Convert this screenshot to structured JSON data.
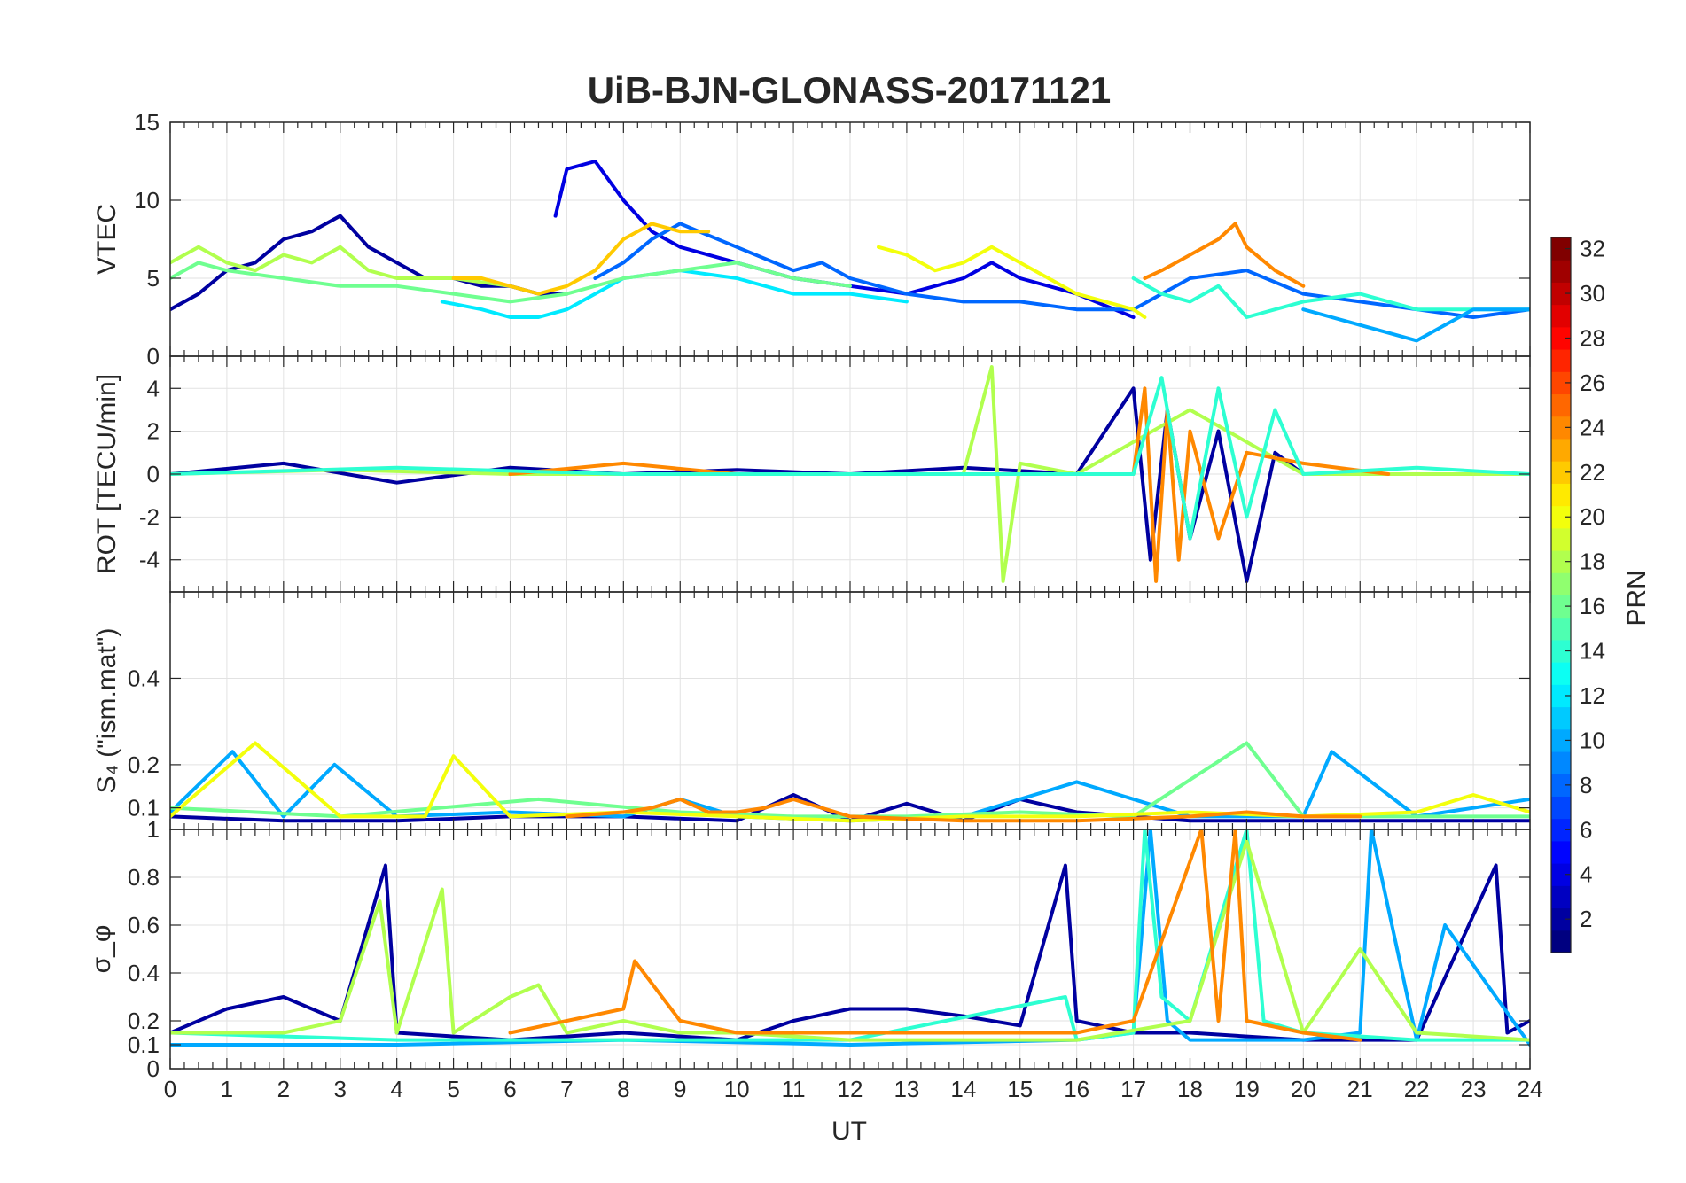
{
  "title": "UiB-BJN-GLONASS-20171121",
  "chart_data": [
    {
      "type": "line",
      "ylabel": "VTEC",
      "ylim": [
        0,
        15
      ],
      "yticks": [
        0,
        5,
        10,
        15
      ],
      "xlim": [
        0,
        24
      ],
      "grid": true,
      "series": [
        {
          "c": 2,
          "x": [
            0,
            0.5,
            1,
            1.5,
            2,
            2.5,
            3,
            3.5,
            4,
            4.5,
            5,
            5.5,
            6,
            6.5,
            7
          ],
          "values": [
            3,
            4,
            5.5,
            6,
            7.5,
            8,
            9,
            7,
            6,
            5,
            5,
            4.5,
            4.5,
            4,
            4
          ]
        },
        {
          "c": 4,
          "x": [
            6.8,
            7,
            7.5,
            8,
            8.5,
            9,
            10,
            11,
            12,
            13,
            14,
            14.5,
            15,
            16,
            17
          ],
          "values": [
            9,
            12,
            12.5,
            10,
            8,
            7,
            6,
            5,
            4.5,
            4,
            5,
            6,
            5,
            4,
            2.5
          ]
        },
        {
          "c": 8,
          "x": [
            7.5,
            8,
            8.5,
            9,
            10,
            11,
            11.5,
            12,
            13,
            14,
            15,
            16,
            17,
            18,
            19,
            20,
            21,
            22,
            23,
            24
          ],
          "values": [
            5,
            6,
            7.5,
            8.5,
            7,
            5.5,
            6,
            5,
            4,
            3.5,
            3.5,
            3,
            3,
            5,
            5.5,
            4,
            3.5,
            3,
            2.5,
            3
          ]
        },
        {
          "c": 12,
          "x": [
            4.8,
            5.5,
            6,
            6.5,
            7,
            7.5,
            8,
            9,
            10,
            11,
            12,
            13
          ],
          "values": [
            3.5,
            3,
            2.5,
            2.5,
            3,
            4,
            5,
            5.5,
            5,
            4,
            4,
            3.5
          ]
        },
        {
          "c": 16,
          "x": [
            0,
            0.5,
            1,
            2,
            3,
            4,
            5,
            6,
            7,
            8,
            9,
            10,
            11,
            12
          ],
          "values": [
            5,
            6,
            5.5,
            5,
            4.5,
            4.5,
            4,
            3.5,
            4,
            5,
            5.5,
            6,
            5,
            4.5
          ]
        },
        {
          "c": 18,
          "x": [
            0,
            0.5,
            1,
            1.5,
            2,
            2.5,
            3,
            3.5,
            4,
            5,
            6
          ],
          "values": [
            6,
            7,
            6,
            5.5,
            6.5,
            6,
            7,
            5.5,
            5,
            5,
            4.5
          ]
        },
        {
          "c": 20,
          "x": [
            12.5,
            13,
            13.5,
            14,
            14.5,
            15,
            16,
            17,
            17.2
          ],
          "values": [
            7,
            6.5,
            5.5,
            6,
            7,
            6,
            4,
            3,
            2.5
          ]
        },
        {
          "c": 22,
          "x": [
            5,
            5.5,
            6,
            6.5,
            7,
            7.5,
            8,
            8.5,
            9,
            9.5
          ],
          "values": [
            5,
            5,
            4.5,
            4,
            4.5,
            5.5,
            7.5,
            8.5,
            8,
            8
          ]
        },
        {
          "c": 24,
          "x": [
            17.2,
            17.5,
            18,
            18.5,
            18.8,
            19,
            19.5,
            20
          ],
          "values": [
            5,
            5.5,
            6.5,
            7.5,
            8.5,
            7,
            5.5,
            4.5
          ]
        },
        {
          "c": 14,
          "x": [
            17,
            17.5,
            18,
            18.5,
            19,
            19.5,
            20,
            21,
            22,
            23,
            24
          ],
          "values": [
            5,
            4,
            3.5,
            4.5,
            2.5,
            3,
            3.5,
            4,
            3,
            3,
            3
          ]
        },
        {
          "c": 10,
          "x": [
            20,
            20.5,
            21,
            21.5,
            22,
            22.5,
            23,
            24
          ],
          "values": [
            3,
            2.5,
            2,
            1.5,
            1,
            2,
            3,
            3
          ]
        }
      ]
    },
    {
      "type": "line",
      "ylabel": "ROT [TECU/min]",
      "ylim": [
        -5.5,
        5.5
      ],
      "yticks": [
        -4,
        -2,
        0,
        2,
        4
      ],
      "xlim": [
        0,
        24
      ],
      "grid": true,
      "series": [
        {
          "c": 2,
          "x": [
            0,
            2,
            4,
            6,
            8,
            10,
            12,
            14,
            16,
            17,
            17.3,
            17.6,
            18,
            18.5,
            19,
            19.5,
            20,
            22,
            24
          ],
          "values": [
            0,
            0.5,
            -0.4,
            0.3,
            0,
            0.2,
            0,
            0.3,
            0,
            4,
            -4,
            3,
            -3,
            2,
            -5,
            1,
            0,
            0,
            0
          ]
        },
        {
          "c": 18,
          "x": [
            0,
            3,
            6,
            9,
            12,
            14,
            14.5,
            14.7,
            15,
            16,
            18,
            20,
            22,
            24
          ],
          "values": [
            0,
            0.2,
            0,
            0,
            0,
            0,
            5,
            -5,
            0.5,
            0,
            3,
            0,
            0,
            0
          ]
        },
        {
          "c": 24,
          "x": [
            6,
            8,
            10,
            12,
            16,
            17,
            17.2,
            17.4,
            17.6,
            17.8,
            18,
            18.5,
            19,
            20,
            21.5
          ],
          "values": [
            0,
            0.5,
            0,
            0,
            0,
            0,
            4,
            -5,
            3,
            -4,
            2,
            -3,
            1,
            0.5,
            0
          ]
        },
        {
          "c": 14,
          "x": [
            0,
            4,
            8,
            12,
            16,
            17,
            17.5,
            18,
            18.5,
            19,
            19.5,
            20,
            22,
            24
          ],
          "values": [
            0,
            0.3,
            0,
            0,
            0,
            0,
            4.5,
            -3,
            4,
            -2,
            3,
            0,
            0.3,
            0
          ]
        }
      ]
    },
    {
      "type": "line",
      "ylabel": "S₄ (\"ism.mat\")",
      "ylim": [
        0.05,
        0.6
      ],
      "yticks": [
        0.1,
        0.2,
        0.4
      ],
      "xlim": [
        0,
        24
      ],
      "grid": true,
      "series": [
        {
          "c": 2,
          "x": [
            0,
            2,
            4,
            6,
            8,
            10,
            11,
            12,
            13,
            14,
            15,
            16,
            18,
            20,
            22,
            24
          ],
          "values": [
            0.08,
            0.07,
            0.07,
            0.08,
            0.08,
            0.07,
            0.13,
            0.07,
            0.11,
            0.07,
            0.12,
            0.09,
            0.07,
            0.07,
            0.07,
            0.07
          ]
        },
        {
          "c": 10,
          "x": [
            0,
            1.1,
            2,
            2.9,
            4,
            6,
            8,
            9,
            10,
            12,
            14,
            16,
            18,
            20,
            20.5,
            22,
            24
          ],
          "values": [
            0.09,
            0.23,
            0.08,
            0.2,
            0.08,
            0.09,
            0.08,
            0.12,
            0.08,
            0.07,
            0.08,
            0.16,
            0.08,
            0.08,
            0.23,
            0.08,
            0.12
          ]
        },
        {
          "c": 16,
          "x": [
            0,
            3,
            6.5,
            9,
            11,
            13,
            15,
            17,
            19,
            20,
            22,
            24
          ],
          "values": [
            0.1,
            0.08,
            0.12,
            0.09,
            0.08,
            0.08,
            0.09,
            0.08,
            0.25,
            0.08,
            0.08,
            0.08
          ]
        },
        {
          "c": 20,
          "x": [
            0,
            1.5,
            3,
            4.5,
            5,
            6,
            8,
            10,
            12,
            14,
            16,
            18,
            20,
            22,
            23,
            24
          ],
          "values": [
            0.08,
            0.25,
            0.08,
            0.08,
            0.22,
            0.08,
            0.09,
            0.08,
            0.07,
            0.08,
            0.08,
            0.09,
            0.08,
            0.09,
            0.13,
            0.09
          ]
        },
        {
          "c": 24,
          "x": [
            7,
            8,
            8.5,
            9,
            9.5,
            10,
            10.5,
            11,
            12,
            14,
            16,
            18,
            19,
            20,
            21
          ],
          "values": [
            0.08,
            0.09,
            0.1,
            0.12,
            0.09,
            0.09,
            0.1,
            0.12,
            0.08,
            0.07,
            0.07,
            0.08,
            0.09,
            0.08,
            0.08
          ]
        }
      ]
    },
    {
      "type": "line",
      "ylabel": "σ_φ",
      "ylim": [
        0,
        1
      ],
      "yticks": [
        0,
        0.1,
        0.2,
        0.4,
        0.6,
        0.8,
        1
      ],
      "xlim": [
        0,
        24
      ],
      "grid": true,
      "series": [
        {
          "c": 2,
          "x": [
            0,
            1,
            2,
            3,
            3.8,
            4,
            6,
            8,
            10,
            11,
            12,
            13,
            14,
            15,
            15.8,
            16,
            17,
            18,
            20,
            22,
            23.4,
            23.6,
            24
          ],
          "values": [
            0.15,
            0.25,
            0.3,
            0.2,
            0.85,
            0.15,
            0.12,
            0.15,
            0.12,
            0.2,
            0.25,
            0.25,
            0.22,
            0.18,
            0.85,
            0.2,
            0.15,
            0.15,
            0.12,
            0.12,
            0.85,
            0.15,
            0.2
          ]
        },
        {
          "c": 10,
          "x": [
            0,
            4,
            8,
            12,
            16,
            17,
            17.3,
            17.6,
            18,
            20,
            21,
            21.2,
            22,
            22.5,
            24
          ],
          "values": [
            0.1,
            0.1,
            0.12,
            0.1,
            0.12,
            0.15,
            1,
            0.2,
            0.12,
            0.12,
            0.15,
            1,
            0.12,
            0.6,
            0.1
          ]
        },
        {
          "c": 14,
          "x": [
            0,
            4,
            8,
            12,
            15.8,
            16,
            17,
            17.2,
            17.5,
            18,
            19,
            19.3,
            20,
            22,
            24
          ],
          "values": [
            0.15,
            0.12,
            0.12,
            0.12,
            0.3,
            0.12,
            0.15,
            1,
            0.3,
            0.2,
            1,
            0.2,
            0.15,
            0.12,
            0.12
          ]
        },
        {
          "c": 18,
          "x": [
            0,
            2,
            3,
            3.7,
            4,
            4.8,
            5,
            6,
            6.5,
            7,
            8,
            9,
            10,
            12,
            14,
            16,
            18,
            19,
            20,
            21,
            22,
            24
          ],
          "values": [
            0.15,
            0.15,
            0.2,
            0.7,
            0.15,
            0.75,
            0.15,
            0.3,
            0.35,
            0.15,
            0.2,
            0.15,
            0.15,
            0.12,
            0.12,
            0.12,
            0.2,
            0.95,
            0.15,
            0.5,
            0.15,
            0.12
          ]
        },
        {
          "c": 24,
          "x": [
            6,
            8,
            8.2,
            9,
            10,
            11,
            16,
            17,
            18.2,
            18.5,
            18.8,
            19,
            20,
            21
          ],
          "values": [
            0.15,
            0.25,
            0.45,
            0.2,
            0.15,
            0.15,
            0.15,
            0.2,
            1,
            0.2,
            1,
            0.2,
            0.15,
            0.12
          ]
        }
      ]
    }
  ],
  "x_axis": {
    "label": "UT",
    "ticks": [
      "0",
      "1",
      "2",
      "3",
      "4",
      "5",
      "6",
      "7",
      "8",
      "9",
      "10",
      "11",
      "12",
      "13",
      "14",
      "15",
      "16",
      "17",
      "18",
      "19",
      "20",
      "21",
      "22",
      "23",
      "24"
    ]
  },
  "colorbar": {
    "label": "PRN",
    "min": 1,
    "max": 32,
    "ticks": [
      "2",
      "4",
      "6",
      "8",
      "10",
      "12",
      "14",
      "16",
      "18",
      "20",
      "22",
      "24",
      "26",
      "28",
      "30",
      "32"
    ],
    "colormap": "jet"
  }
}
